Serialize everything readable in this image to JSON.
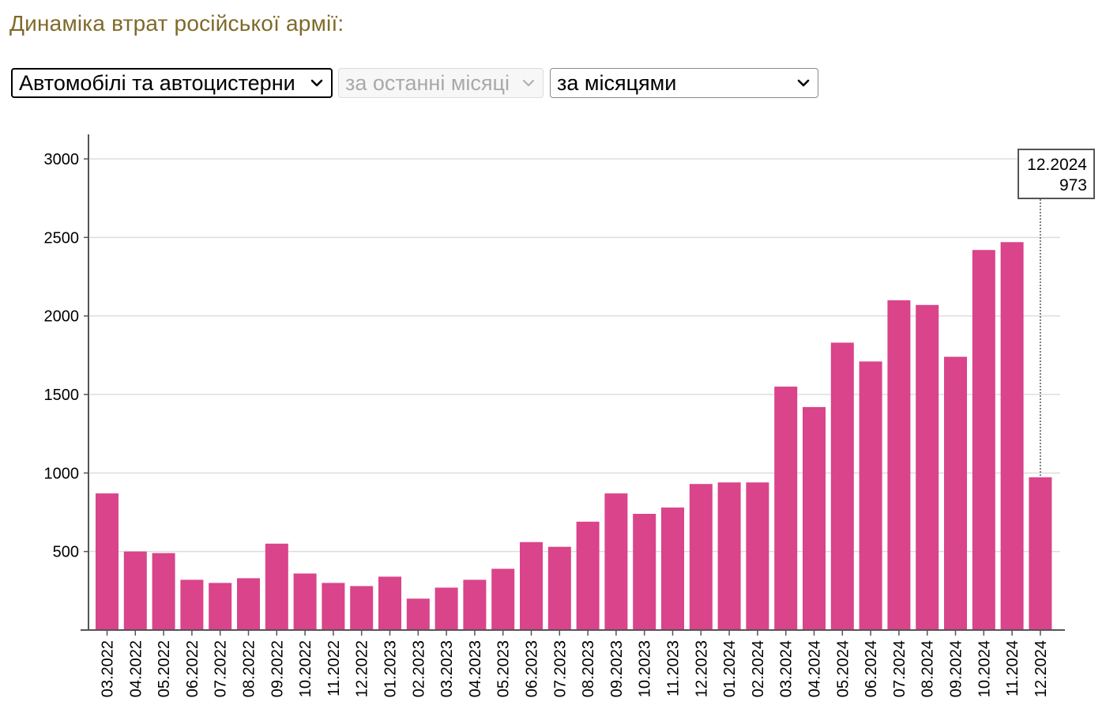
{
  "page": {
    "title": "Динаміка втрат російської армії:"
  },
  "controls": {
    "category_select": {
      "value": "Автомобілі та автоцистерни"
    },
    "period_select": {
      "value": "за останні місяці",
      "disabled": true
    },
    "grouping_select": {
      "value": "за місяцями"
    }
  },
  "colors": {
    "bar": "#d9448a",
    "grid": "#dddddd",
    "axis": "#555555",
    "title": "#7f6a2a"
  },
  "tooltip": {
    "label": "12.2024",
    "value": "973"
  },
  "chart_data": {
    "type": "bar",
    "title": "",
    "xlabel": "",
    "ylabel": "",
    "ylim": [
      0,
      3150
    ],
    "yticks": [
      500,
      1000,
      1500,
      2000,
      2500,
      3000
    ],
    "grid": true,
    "categories": [
      "03.2022",
      "04.2022",
      "05.2022",
      "06.2022",
      "07.2022",
      "08.2022",
      "09.2022",
      "10.2022",
      "11.2022",
      "12.2022",
      "01.2023",
      "02.2023",
      "03.2023",
      "04.2023",
      "05.2023",
      "06.2023",
      "07.2023",
      "08.2023",
      "09.2023",
      "10.2023",
      "11.2023",
      "12.2023",
      "01.2024",
      "02.2024",
      "03.2024",
      "04.2024",
      "05.2024",
      "06.2024",
      "07.2024",
      "08.2024",
      "09.2024",
      "10.2024",
      "11.2024",
      "12.2024"
    ],
    "values": [
      870,
      500,
      490,
      320,
      300,
      330,
      550,
      360,
      300,
      280,
      340,
      200,
      270,
      320,
      390,
      560,
      530,
      690,
      870,
      740,
      780,
      930,
      940,
      940,
      1550,
      1420,
      1830,
      1710,
      2100,
      2070,
      1740,
      2420,
      2470,
      973
    ]
  }
}
